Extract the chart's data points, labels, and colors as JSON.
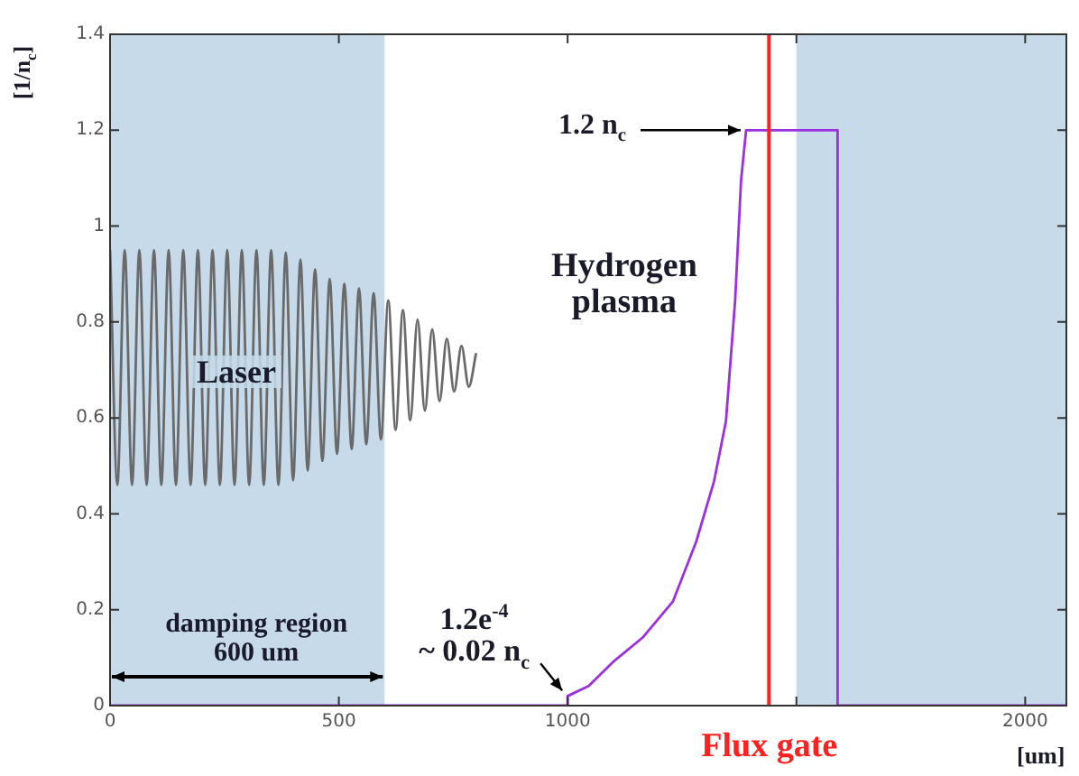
{
  "chart_data": {
    "type": "line",
    "xlabel": "[um]",
    "ylabel": "[1/n$_{c}$]",
    "xlim": [
      0,
      2090
    ],
    "ylim": [
      0,
      1.4
    ],
    "xticks": [
      0,
      500,
      1000,
      {
        "value": 1500,
        "label": null
      },
      2000
    ],
    "yticks": [
      0,
      0.2,
      0.4,
      0.6,
      0.8,
      1,
      1.2,
      1.4
    ],
    "grid": false,
    "legend": false,
    "marker": "none",
    "line_style": "solid",
    "series": [
      {
        "color": "#9b30e0",
        "x": [
          0,
          1000,
          1000,
          1046,
          1098,
          1164,
          1230,
          1281,
          1320,
          1346,
          1366,
          1379,
          1390,
          1590,
          1590,
          2090
        ],
        "values": [
          0,
          0,
          0.02,
          0.041,
          0.09,
          0.142,
          0.217,
          0.342,
          0.468,
          0.593,
          0.844,
          1.095,
          1.2,
          1.2,
          0,
          0
        ]
      },
      {
        "color": "#6a6a6a",
        "x": [
          0,
          16,
          32,
          48,
          64,
          80,
          96,
          112,
          128,
          144,
          160,
          176,
          192,
          208,
          224,
          240,
          256,
          272,
          288,
          304,
          320,
          336,
          352,
          368,
          384,
          400,
          416,
          432,
          448,
          464,
          480,
          496,
          512,
          528,
          544,
          560,
          576,
          592,
          608,
          624,
          640,
          656,
          672,
          688,
          704,
          720,
          736,
          752,
          768,
          784,
          800
        ],
        "values": [
          0.95,
          0.46,
          0.95,
          0.46,
          0.95,
          0.46,
          0.95,
          0.46,
          0.95,
          0.46,
          0.95,
          0.46,
          0.95,
          0.46,
          0.95,
          0.46,
          0.95,
          0.46,
          0.95,
          0.46,
          0.95,
          0.46,
          0.95,
          0.46,
          0.945,
          0.47,
          0.93,
          0.49,
          0.91,
          0.51,
          0.89,
          0.525,
          0.88,
          0.535,
          0.87,
          0.545,
          0.86,
          0.555,
          0.845,
          0.575,
          0.825,
          0.595,
          0.805,
          0.615,
          0.785,
          0.635,
          0.765,
          0.655,
          0.75,
          0.665,
          0.735
        ]
      }
    ],
    "bands": [
      {
        "axis": "x",
        "from": 0,
        "to": 600,
        "label": "damping region\n600 um",
        "color": "#c6dae9"
      },
      {
        "axis": "x",
        "from": 1500,
        "to": 2090,
        "color": "#c6dae9"
      }
    ],
    "ref_lines": [
      {
        "axis": "x",
        "value": 1440,
        "label": "Flux gate",
        "color": "#ff2020",
        "line_style": "solid"
      }
    ],
    "annotations": [
      "Laser",
      "Hydrogen\nplasma",
      {
        "text": "1.2 n$_{c}$",
        "x": 1390,
        "y": 1.2
      },
      {
        "text": "1.2e$^{-4}$\n~ 0.02 n$_{c}$",
        "x": 1000,
        "y": 0.02
      }
    ]
  }
}
